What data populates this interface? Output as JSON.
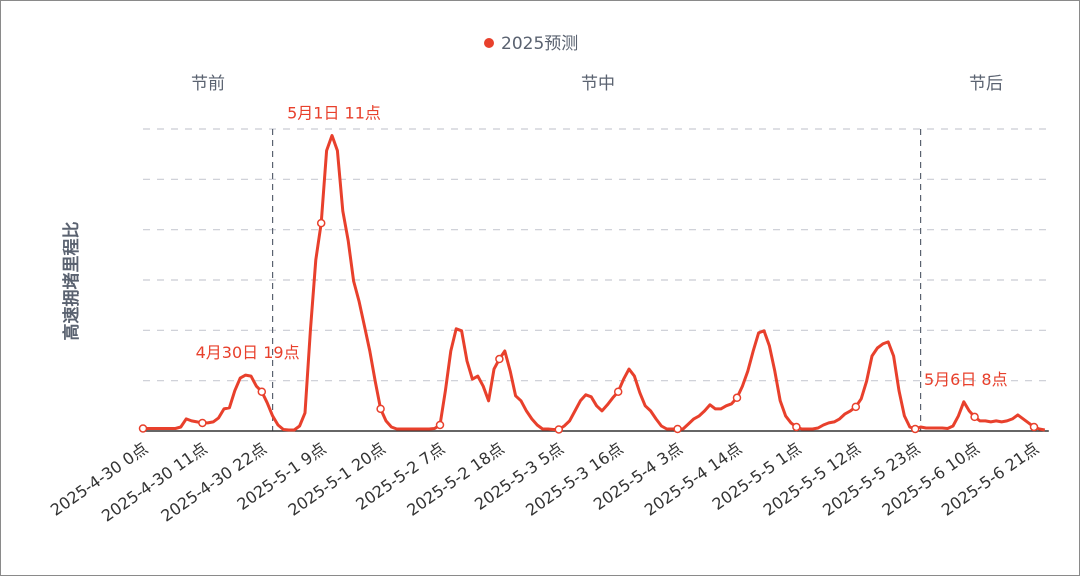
{
  "chart_data": {
    "type": "line",
    "title": "",
    "xlabel": "",
    "ylabel": "高速拥堵里程比",
    "ylim": [
      0,
      6
    ],
    "grid": true,
    "legend": {
      "position": "top",
      "entries": [
        "2025预测"
      ]
    },
    "colors": {
      "series": "#e8402c",
      "grid": "#c9ccd4",
      "divider": "#5a6270",
      "axis": "#333333"
    },
    "sections": [
      {
        "label": "节前",
        "from_hour": 0,
        "to_hour": 24
      },
      {
        "label": "节中",
        "from_hour": 24,
        "to_hour": 144
      },
      {
        "label": "节后",
        "from_hour": 144,
        "to_hour": 167
      }
    ],
    "tick_labels": [
      "2025-4-30 0点",
      "2025-4-30 11点",
      "2025-4-30 22点",
      "2025-5-1 9点",
      "2025-5-1 20点",
      "2025-5-2 7点",
      "2025-5-2 18点",
      "2025-5-3 5点",
      "2025-5-3 16点",
      "2025-5-4 3点",
      "2025-5-4 14点",
      "2025-5-5 1点",
      "2025-5-5 12点",
      "2025-5-5 23点",
      "2025-5-6 10点",
      "2025-5-6 21点"
    ],
    "tick_interval_hours": 11,
    "series": [
      {
        "name": "2025预测",
        "values": [
          0.05,
          0.05,
          0.05,
          0.05,
          0.05,
          0.05,
          0.05,
          0.08,
          0.24,
          0.2,
          0.18,
          0.16,
          0.16,
          0.18,
          0.26,
          0.44,
          0.46,
          0.8,
          1.05,
          1.11,
          1.09,
          0.89,
          0.78,
          0.56,
          0.3,
          0.12,
          0.03,
          0.02,
          0.02,
          0.1,
          0.36,
          2.0,
          3.4,
          4.13,
          5.57,
          5.87,
          5.57,
          4.37,
          3.78,
          2.98,
          2.58,
          2.09,
          1.59,
          0.99,
          0.44,
          0.2,
          0.08,
          0.04,
          0.04,
          0.04,
          0.04,
          0.04,
          0.04,
          0.04,
          0.05,
          0.12,
          0.8,
          1.59,
          2.03,
          1.99,
          1.39,
          1.03,
          1.09,
          0.89,
          0.6,
          1.23,
          1.43,
          1.59,
          1.19,
          0.7,
          0.6,
          0.4,
          0.24,
          0.12,
          0.04,
          0.04,
          0.03,
          0.03,
          0.1,
          0.2,
          0.4,
          0.6,
          0.72,
          0.68,
          0.5,
          0.4,
          0.52,
          0.66,
          0.78,
          1.03,
          1.23,
          1.09,
          0.76,
          0.5,
          0.4,
          0.24,
          0.1,
          0.04,
          0.04,
          0.04,
          0.04,
          0.14,
          0.24,
          0.3,
          0.4,
          0.52,
          0.44,
          0.44,
          0.5,
          0.54,
          0.66,
          0.89,
          1.19,
          1.59,
          1.95,
          1.99,
          1.69,
          1.19,
          0.6,
          0.3,
          0.16,
          0.08,
          0.04,
          0.04,
          0.04,
          0.06,
          0.12,
          0.16,
          0.18,
          0.24,
          0.34,
          0.4,
          0.48,
          0.64,
          0.99,
          1.49,
          1.65,
          1.73,
          1.77,
          1.49,
          0.8,
          0.3,
          0.08,
          0.04,
          0.08,
          0.06,
          0.06,
          0.06,
          0.06,
          0.05,
          0.1,
          0.3,
          0.58,
          0.4,
          0.28,
          0.2,
          0.2,
          0.18,
          0.2,
          0.18,
          0.2,
          0.24,
          0.32,
          0.24,
          0.16,
          0.08,
          0.04,
          0.02
        ]
      }
    ],
    "annotations": [
      {
        "hour": 19,
        "text": "4月30日 19点"
      },
      {
        "hour": 35,
        "text": "5月1日 11点"
      },
      {
        "hour": 152,
        "text": "5月6日 8点"
      }
    ]
  }
}
